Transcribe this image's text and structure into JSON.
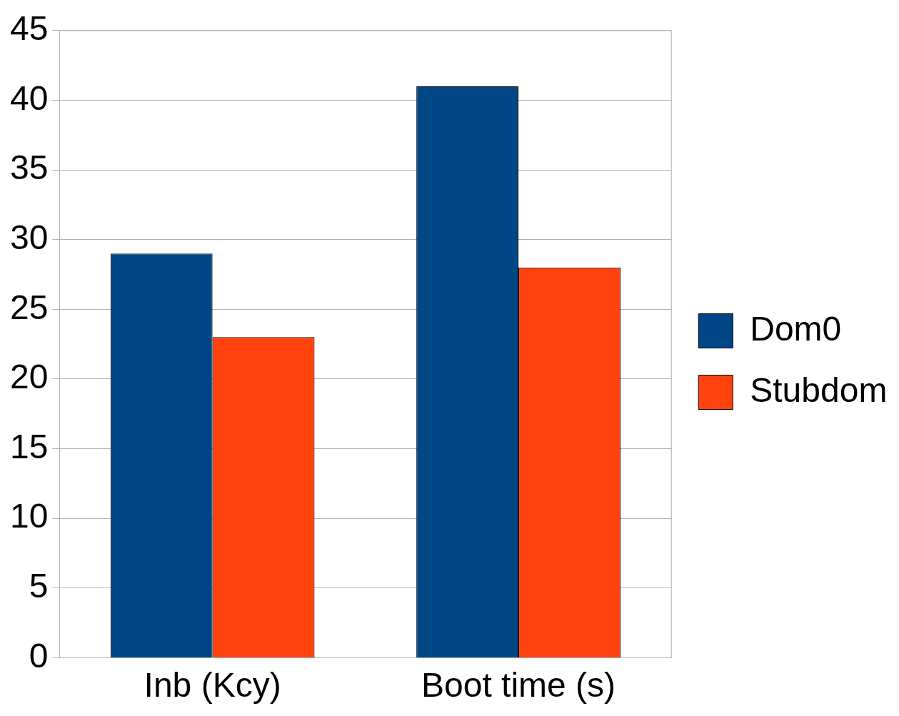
{
  "chart_data": {
    "type": "bar",
    "categories": [
      "Inb (Kcy)",
      "Boot time (s)"
    ],
    "series": [
      {
        "name": "Dom0",
        "color": "#004586",
        "values": [
          29,
          41
        ]
      },
      {
        "name": "Stubdom",
        "color": "#ff420e",
        "values": [
          23,
          28
        ]
      }
    ],
    "ylim": [
      0,
      45
    ],
    "yticks": [
      0,
      5,
      10,
      15,
      20,
      25,
      30,
      35,
      40,
      45
    ],
    "grid": "y",
    "legend": "right"
  }
}
